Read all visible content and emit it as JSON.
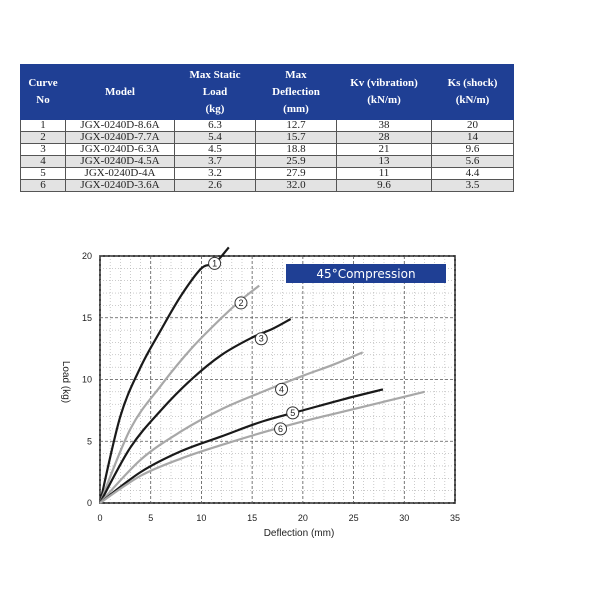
{
  "table": {
    "headers": [
      "Curve\nNo",
      "Model",
      "Max Static\nLoad\n(kg)",
      "Max\nDeflection\n(mm)",
      "Kv (vibration)\n(kN/m)",
      "Ks (shock)\n(kN/m)"
    ],
    "rows": [
      [
        "1",
        "JGX-0240D-8.6A",
        "6.3",
        "12.7",
        "38",
        "20"
      ],
      [
        "2",
        "JGX-0240D-7.7A",
        "5.4",
        "15.7",
        "28",
        "14"
      ],
      [
        "3",
        "JGX-0240D-6.3A",
        "4.5",
        "18.8",
        "21",
        "9.6"
      ],
      [
        "4",
        "JGX-0240D-4.5A",
        "3.7",
        "25.9",
        "13",
        "5.6"
      ],
      [
        "5",
        "JGX-0240D-4A",
        "3.2",
        "27.9",
        "11",
        "4.4"
      ],
      [
        "6",
        "JGX-0240D-3.6A",
        "2.6",
        "32.0",
        "9.6",
        "3.5"
      ]
    ]
  },
  "chart_data": {
    "type": "line",
    "title": "45°Compression",
    "xlabel": "Deflection (mm)",
    "ylabel": "Load (kg)",
    "xlim": [
      0,
      35
    ],
    "ylim": [
      0,
      20
    ],
    "xticks": [
      0,
      5,
      10,
      15,
      20,
      25,
      30,
      35
    ],
    "yticks": [
      0,
      5,
      10,
      15,
      20
    ],
    "grid": true,
    "series": [
      {
        "name": "1",
        "color": "#1a1a1a",
        "x": [
          0,
          2,
          4,
          6,
          8,
          10,
          11.3,
          12.7
        ],
        "y": [
          0,
          7,
          11,
          14,
          16.8,
          19,
          19.4,
          20.7
        ],
        "label_at": [
          11.3,
          19.4
        ]
      },
      {
        "name": "2",
        "color": "#a8a8a8",
        "x": [
          0,
          3,
          6,
          9,
          12,
          14,
          15.7
        ],
        "y": [
          0,
          6,
          9.5,
          12.5,
          15,
          16.5,
          17.6
        ],
        "label_at": [
          13.9,
          16.2
        ]
      },
      {
        "name": "3",
        "color": "#1a1a1a",
        "x": [
          0,
          3,
          6,
          9,
          12,
          15,
          17,
          18.8
        ],
        "y": [
          0,
          4.5,
          7.5,
          10,
          12,
          13.4,
          14.1,
          14.9
        ],
        "label_at": [
          15.9,
          13.3
        ]
      },
      {
        "name": "4",
        "color": "#a8a8a8",
        "x": [
          0,
          4,
          8,
          12,
          16,
          20,
          23,
          25.9
        ],
        "y": [
          0,
          3.5,
          5.8,
          7.6,
          9.0,
          10.3,
          11.2,
          12.2
        ],
        "label_at": [
          17.9,
          9.2
        ]
      },
      {
        "name": "5",
        "color": "#1a1a1a",
        "x": [
          0,
          4,
          8,
          12,
          16,
          20,
          24,
          27.9
        ],
        "y": [
          0,
          2.5,
          4.2,
          5.4,
          6.6,
          7.5,
          8.4,
          9.2
        ],
        "label_at": [
          19,
          7.3
        ]
      },
      {
        "name": "6",
        "color": "#a8a8a8",
        "x": [
          0,
          4,
          8,
          12,
          16,
          20,
          24,
          28,
          32
        ],
        "y": [
          0,
          2.2,
          3.6,
          4.7,
          5.7,
          6.6,
          7.4,
          8.2,
          9.0
        ],
        "label_at": [
          17.8,
          6.0
        ]
      }
    ]
  }
}
